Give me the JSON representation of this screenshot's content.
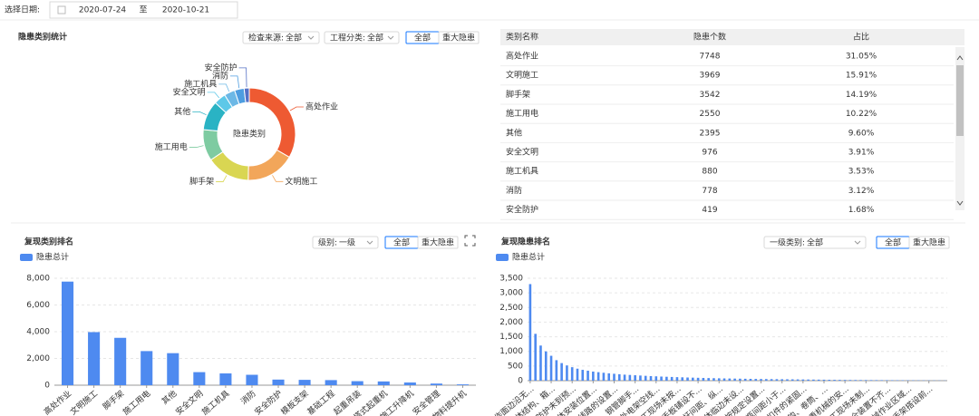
{
  "header": {
    "label": "选择日期:",
    "start": "2020-07-24",
    "sep": "至",
    "end": "2020-10-21"
  },
  "table": {
    "headers": [
      "类别名称",
      "隐患个数",
      "占比"
    ]
  },
  "chart_data": [
    {
      "type": "donut",
      "title": "隐患类别统计",
      "filters": [
        {
          "label": "检查来源:",
          "value": "全部"
        },
        {
          "label": "工程分类:",
          "value": "全部"
        }
      ],
      "buttons": [
        "全部",
        "重大隐患"
      ],
      "center_label": "隐患类别",
      "categories": [
        "高处作业",
        "文明施工",
        "脚手架",
        "施工用电",
        "其他",
        "安全文明",
        "施工机具",
        "消防",
        "安全防护"
      ],
      "values": [
        7748,
        3969,
        3542,
        2550,
        2395,
        976,
        880,
        778,
        419
      ],
      "value_labels": [
        "31.05%",
        "15.91%",
        "14.19%",
        "10.22%",
        "9.60%",
        "3.91%",
        "3.53%",
        "3.12%",
        "1.68%"
      ],
      "colors": [
        "#ee5a32",
        "#f2a65a",
        "#d9d652",
        "#7ecba1",
        "#2ab3c4",
        "#5ec8e8",
        "#6cb8e6",
        "#4d9de0",
        "#5470c6"
      ]
    },
    {
      "type": "bar",
      "title": "复现类别排名",
      "filters": [
        {
          "label": "级别:",
          "value": "一级"
        }
      ],
      "buttons": [
        "全部",
        "重大隐患"
      ],
      "categories": [
        "高处作业",
        "文明施工",
        "脚手架",
        "施工用电",
        "其他",
        "安全文明",
        "施工机具",
        "消防",
        "安全防护",
        "模板支架",
        "基础工程",
        "起重吊装",
        "塔式起重机",
        "施工升降机",
        "安全管理",
        "物料提升机"
      ],
      "series": [
        {
          "name": "隐患总计",
          "color": "#4e8af0",
          "values": [
            7748,
            3969,
            3542,
            2550,
            2395,
            976,
            880,
            778,
            419,
            400,
            380,
            300,
            280,
            200,
            120,
            60
          ]
        }
      ],
      "ylim": [
        0,
        8000
      ],
      "yticks": [
        0,
        {
          "value": 2000,
          "label": "2,000"
        },
        {
          "value": 4000,
          "label": "4,000"
        },
        {
          "value": 6000,
          "label": "6,000"
        },
        {
          "value": 8000,
          "label": "8,000"
        }
      ],
      "grid": true
    },
    {
      "type": "bar",
      "title": "复现隐患排名",
      "filters": [
        {
          "label": "一级类别:",
          "value": "全部"
        }
      ],
      "buttons": [
        "全部",
        "重大隐患"
      ],
      "categories": [
        "工作面边沿无...",
        null,
        null,
        null,
        "脚体结构、箱...",
        null,
        null,
        null,
        "脚防护未到预...",
        null,
        null,
        null,
        "脚体安装位置...",
        null,
        null,
        null,
        "线路的设置...",
        null,
        null,
        null,
        "钢管脚手...",
        null,
        null,
        null,
        "在外电架空线...",
        null,
        null,
        null,
        "施工现场未按...",
        null,
        null,
        null,
        "脚手板铺设不...",
        null,
        null,
        null,
        "立杆间距、纵...",
        null,
        null,
        null,
        "操体临边未设...",
        null,
        null,
        null,
        "未按规定设置...",
        null,
        null,
        null,
        "气瓶间距小于...",
        null,
        null,
        null,
        "扣件的紧固...",
        null,
        null,
        null,
        "吊钩、卷筒、...",
        null,
        null,
        null,
        "起重机械的安...",
        null,
        null,
        null,
        "施工现场未制...",
        null,
        null,
        null,
        "安全装置不齐...",
        null,
        null,
        null,
        "机械作业区域...",
        null,
        null,
        null,
        "脚手架搭设前...",
        null,
        null,
        null
      ],
      "series": [
        {
          "name": "隐患总计",
          "color": "#4e8af0",
          "values": [
            3300,
            1600,
            1200,
            1000,
            850,
            700,
            600,
            520,
            460,
            410,
            370,
            340,
            310,
            290,
            270,
            250,
            235,
            220,
            205,
            195,
            185,
            175,
            165,
            155,
            148,
            140,
            133,
            126,
            120,
            114,
            108,
            103,
            98,
            93,
            89,
            85,
            81,
            77,
            74,
            71,
            68,
            65,
            62,
            59,
            57,
            55,
            53,
            51,
            49,
            47,
            45,
            43,
            41,
            39,
            37,
            35,
            33,
            31,
            29,
            27,
            25,
            24,
            23,
            22,
            21,
            20,
            19,
            18,
            17,
            16,
            15,
            14,
            13,
            12,
            11,
            10,
            9,
            8,
            7,
            6
          ]
        }
      ],
      "ylim": [
        0,
        3500
      ],
      "yticks": [
        0,
        500,
        {
          "value": 1000,
          "label": "1,000"
        },
        {
          "value": 1500,
          "label": "1,500"
        },
        {
          "value": 2000,
          "label": "2,000"
        },
        {
          "value": 2500,
          "label": "2,500"
        },
        {
          "value": 3000,
          "label": "3,000"
        },
        {
          "value": 3500,
          "label": "3,500"
        }
      ],
      "grid": true
    }
  ]
}
